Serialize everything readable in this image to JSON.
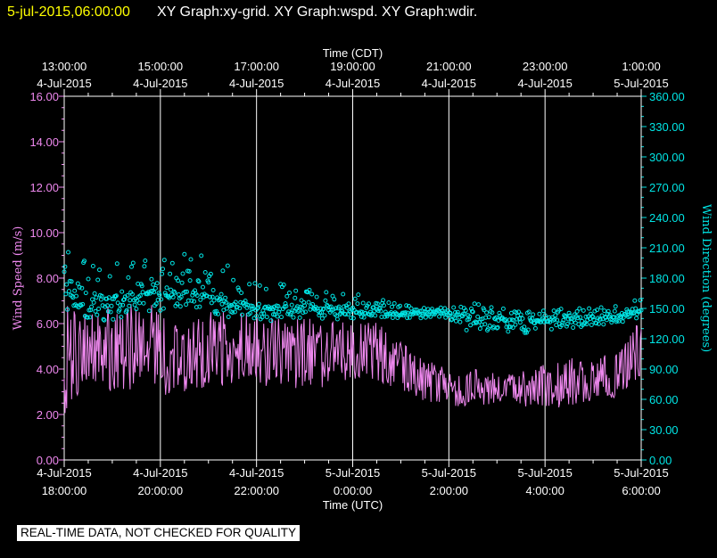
{
  "header": {
    "date": "5-jul-2015,06:00:00",
    "graphs": "XY Graph:xy-grid.  XY Graph:wspd.  XY Graph:wdir."
  },
  "footer": "REAL-TIME DATA, NOT CHECKED FOR QUALITY",
  "colors": {
    "speed": "#ee88ee",
    "direction": "#00e5e5",
    "grid": "#ffffff",
    "title_date": "#ffff00"
  },
  "chart_data": {
    "type": "line",
    "top_axis": {
      "label": "Time (CDT)",
      "ticks": [
        {
          "time": "13:00:00",
          "date": "4-Jul-2015"
        },
        {
          "time": "15:00:00",
          "date": "4-Jul-2015"
        },
        {
          "time": "17:00:00",
          "date": "4-Jul-2015"
        },
        {
          "time": "19:00:00",
          "date": "4-Jul-2015"
        },
        {
          "time": "21:00:00",
          "date": "4-Jul-2015"
        },
        {
          "time": "23:00:00",
          "date": "4-Jul-2015"
        },
        {
          "time": "1:00:00",
          "date": "5-Jul-2015"
        }
      ]
    },
    "bottom_axis": {
      "label": "Time (UTC)",
      "ticks": [
        {
          "date": "4-Jul-2015",
          "time": "18:00:00"
        },
        {
          "date": "4-Jul-2015",
          "time": "20:00:00"
        },
        {
          "date": "4-Jul-2015",
          "time": "22:00:00"
        },
        {
          "date": "5-Jul-2015",
          "time": "0:00:00"
        },
        {
          "date": "5-Jul-2015",
          "time": "2:00:00"
        },
        {
          "date": "5-Jul-2015",
          "time": "4:00:00"
        },
        {
          "date": "5-Jul-2015",
          "time": "6:00:00"
        }
      ],
      "xlim_hours": [
        18,
        30
      ]
    },
    "left_axis": {
      "label": "Wind Speed (m/s)",
      "ylim": [
        0,
        16
      ],
      "ticks": [
        "0.00",
        "2.00",
        "4.00",
        "6.00",
        "8.00",
        "10.00",
        "12.00",
        "14.00",
        "16.00"
      ]
    },
    "right_axis": {
      "label": "Wind Direction (degrees)",
      "ylim": [
        0,
        360
      ],
      "ticks": [
        "0.00",
        "30.00",
        "60.00",
        "90.00",
        "120.00",
        "150.00",
        "180.00",
        "210.00",
        "240.00",
        "270.00",
        "300.00",
        "330.00",
        "360.00"
      ]
    },
    "series": [
      {
        "name": "Wind Speed (m/s)",
        "style": "line",
        "hours_utc": [
          18.0,
          18.5,
          19.0,
          19.5,
          20.0,
          20.5,
          21.0,
          21.5,
          22.0,
          22.5,
          23.0,
          23.5,
          24.0,
          24.5,
          25.0,
          25.5,
          26.0,
          26.5,
          27.0,
          27.5,
          28.0,
          28.5,
          29.0,
          29.5,
          30.0
        ],
        "mean": [
          4.6,
          4.7,
          4.9,
          4.9,
          5.0,
          4.9,
          4.9,
          4.8,
          4.8,
          4.6,
          4.7,
          4.8,
          5.0,
          4.8,
          4.2,
          3.5,
          3.2,
          3.3,
          3.0,
          3.1,
          3.2,
          3.5,
          3.4,
          3.6,
          4.5
        ],
        "low": [
          2.0,
          3.0,
          3.0,
          3.0,
          2.8,
          3.0,
          3.2,
          3.2,
          3.4,
          3.0,
          3.0,
          3.2,
          3.5,
          3.4,
          3.0,
          2.6,
          2.4,
          2.3,
          2.5,
          2.3,
          2.2,
          2.4,
          2.6,
          2.7,
          3.6
        ],
        "high": [
          6.8,
          6.6,
          6.8,
          6.9,
          6.8,
          6.5,
          6.5,
          6.6,
          6.4,
          6.2,
          6.3,
          6.3,
          6.2,
          6.1,
          5.2,
          4.4,
          4.1,
          4.0,
          3.8,
          3.9,
          4.2,
          4.5,
          4.5,
          4.8,
          6.3
        ]
      },
      {
        "name": "Wind Direction (degrees)",
        "style": "markers",
        "hours_utc": [
          18.0,
          18.5,
          19.0,
          19.5,
          20.0,
          20.5,
          21.0,
          21.5,
          22.0,
          22.5,
          23.0,
          23.5,
          24.0,
          24.5,
          25.0,
          25.5,
          26.0,
          26.5,
          27.0,
          27.5,
          28.0,
          28.5,
          29.0,
          29.5,
          30.0
        ],
        "mean": [
          165,
          158,
          160,
          165,
          165,
          168,
          162,
          158,
          152,
          150,
          152,
          150,
          146,
          148,
          145,
          145,
          146,
          140,
          140,
          138,
          138,
          140,
          140,
          143,
          148
        ],
        "low": [
          150,
          138,
          138,
          145,
          145,
          150,
          145,
          140,
          138,
          135,
          140,
          138,
          140,
          142,
          140,
          140,
          140,
          120,
          125,
          125,
          128,
          130,
          133,
          135,
          138
        ],
        "high": [
          210,
          195,
          200,
          200,
          205,
          210,
          200,
          195,
          185,
          180,
          178,
          175,
          165,
          160,
          155,
          152,
          150,
          155,
          152,
          148,
          150,
          150,
          150,
          155,
          165
        ]
      }
    ],
    "grid": true
  }
}
